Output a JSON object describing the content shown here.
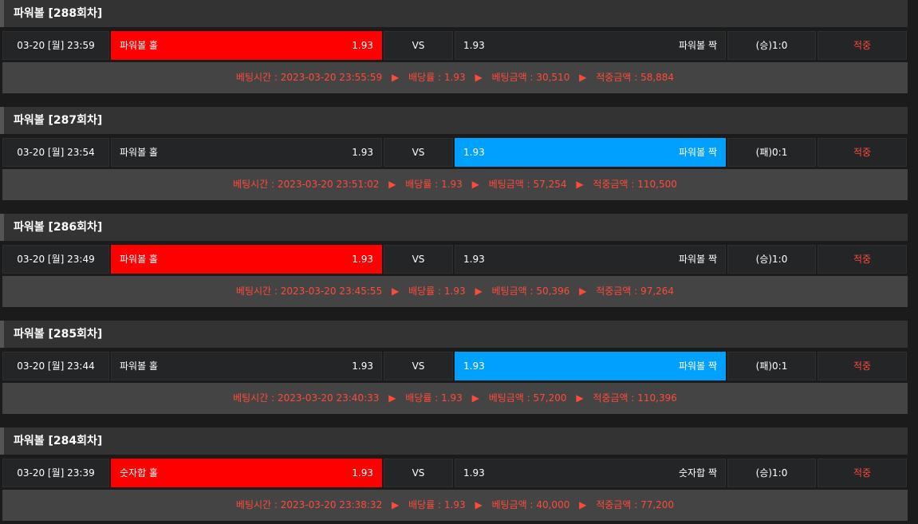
{
  "labels": {
    "vs": "VS",
    "bet_time": "베팅시간 : ",
    "odds": "배당률 : ",
    "bet_amount": "베팅금액 : ",
    "win_amount": "적중금액 : ",
    "arrow": "▶"
  },
  "colors": {
    "home_selected": "#ff0000",
    "away_selected": "#00a0ff",
    "status_text": "#ff4a3a"
  },
  "rounds": [
    {
      "title": "파워볼 [288회차]",
      "date": "03-20 [월] 23:59",
      "home": "파워볼 홀",
      "home_odds": "1.93",
      "away_odds": "1.93",
      "away": "파워볼 짝",
      "selected": "home",
      "result": "(승)1:0",
      "status": "적중",
      "bet_time": "2023-03-20 23:55:59",
      "odds": "1.93",
      "bet_amount": "30,510",
      "win_amount": "58,884"
    },
    {
      "title": "파워볼 [287회차]",
      "date": "03-20 [월] 23:54",
      "home": "파워볼 홀",
      "home_odds": "1.93",
      "away_odds": "1.93",
      "away": "파워볼 짝",
      "selected": "away",
      "result": "(패)0:1",
      "status": "적중",
      "bet_time": "2023-03-20 23:51:02",
      "odds": "1.93",
      "bet_amount": "57,254",
      "win_amount": "110,500"
    },
    {
      "title": "파워볼 [286회차]",
      "date": "03-20 [월] 23:49",
      "home": "파워볼 홀",
      "home_odds": "1.93",
      "away_odds": "1.93",
      "away": "파워볼 짝",
      "selected": "home",
      "result": "(승)1:0",
      "status": "적중",
      "bet_time": "2023-03-20 23:45:55",
      "odds": "1.93",
      "bet_amount": "50,396",
      "win_amount": "97,264"
    },
    {
      "title": "파워볼 [285회차]",
      "date": "03-20 [월] 23:44",
      "home": "파워볼 홀",
      "home_odds": "1.93",
      "away_odds": "1.93",
      "away": "파워볼 짝",
      "selected": "away",
      "result": "(패)0:1",
      "status": "적중",
      "bet_time": "2023-03-20 23:40:33",
      "odds": "1.93",
      "bet_amount": "57,200",
      "win_amount": "110,396"
    },
    {
      "title": "파워볼 [284회차]",
      "date": "03-20 [월] 23:39",
      "home": "숫자합 홀",
      "home_odds": "1.93",
      "away_odds": "1.93",
      "away": "숫자합 짝",
      "selected": "home",
      "result": "(승)1:0",
      "status": "적중",
      "bet_time": "2023-03-20 23:38:32",
      "odds": "1.93",
      "bet_amount": "40,000",
      "win_amount": "77,200"
    }
  ]
}
